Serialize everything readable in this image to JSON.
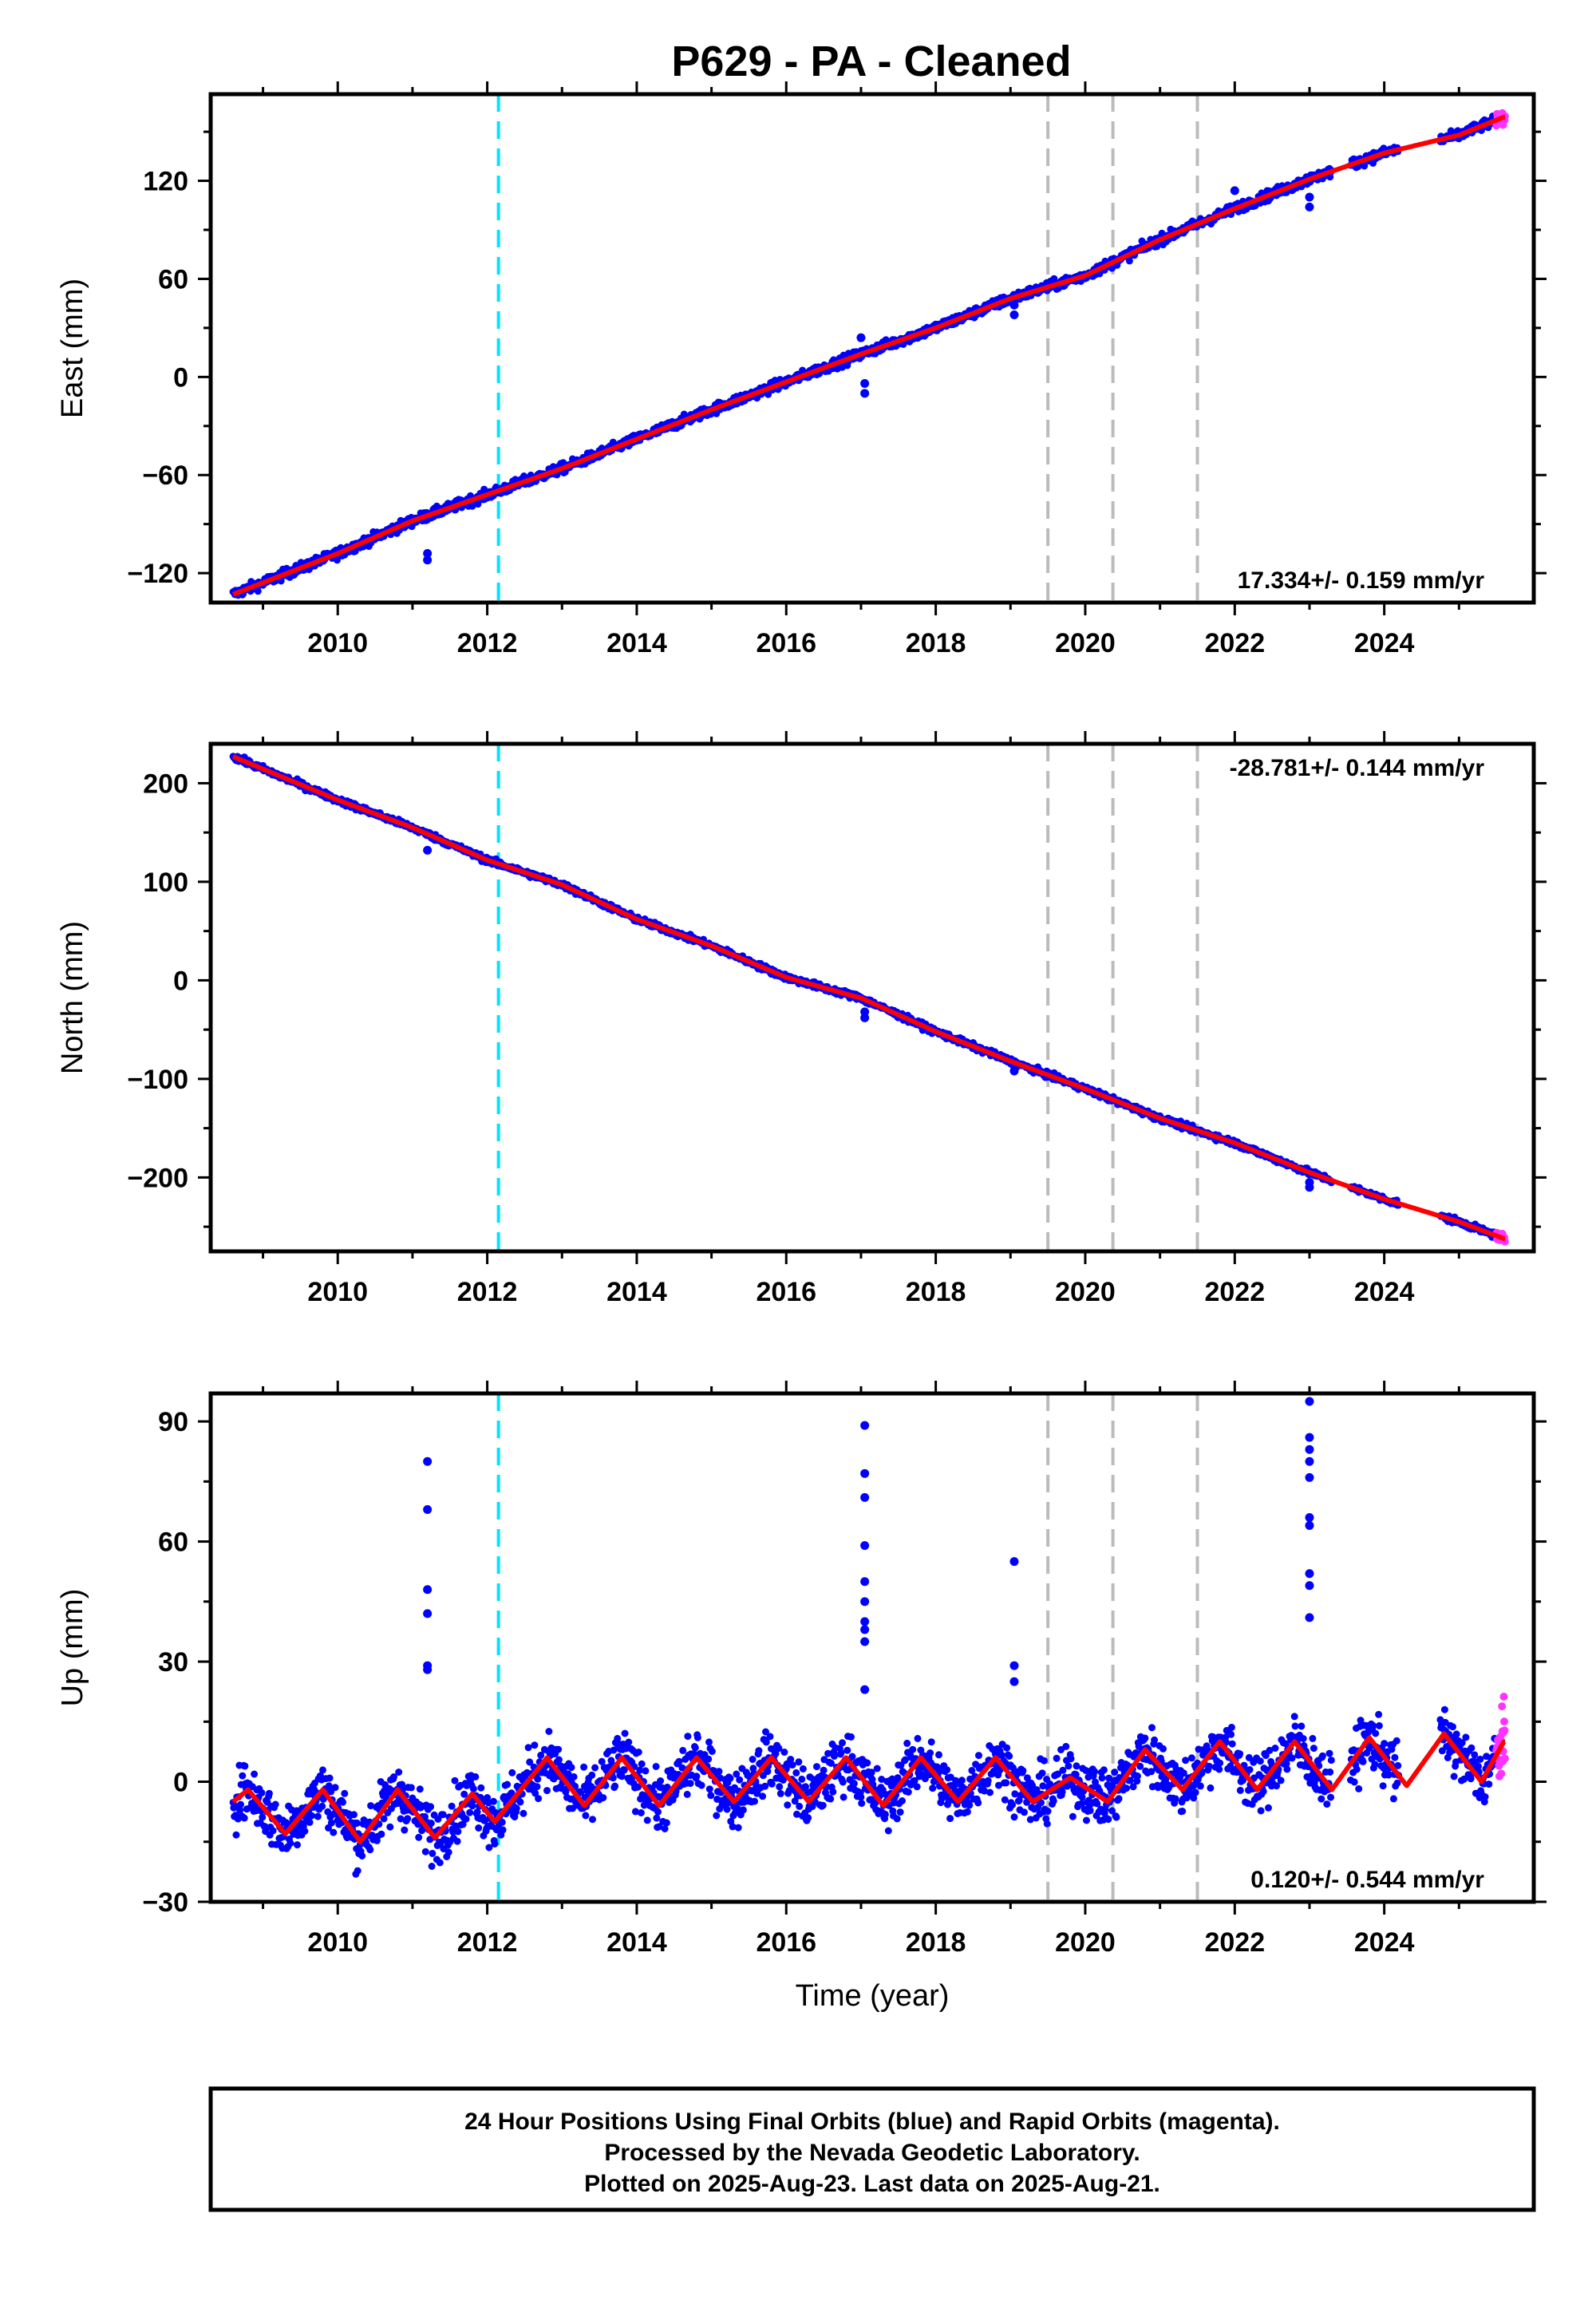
{
  "title": "P629  - PA - Cleaned",
  "colors": {
    "final_orbits": "#0000ff",
    "rapid_orbits": "#ff33ff",
    "model": "#ff0000",
    "equipment_change": "#bbbbbb",
    "antenna_change": "#00e5ff"
  },
  "chart_data": [
    {
      "type": "scatter",
      "component": "east",
      "ylabel": "East (mm)",
      "xlabel": "",
      "xlim": [
        2008.3,
        2026.0
      ],
      "ylim": [
        -138,
        173
      ],
      "xticks": [
        2010,
        2012,
        2014,
        2016,
        2018,
        2020,
        2022,
        2024
      ],
      "yticks": [
        -120,
        -60,
        0,
        60,
        120
      ],
      "ytick_labels": [
        "−120",
        "−60",
        "0",
        "60",
        "120"
      ],
      "rate_text": "17.334+/- 0.159 mm/yr",
      "rate_position": "bottom-right",
      "trend": {
        "t0": 2016.5,
        "y0": 0,
        "rate": 17.334
      },
      "model_line": [
        [
          2008.6,
          -133
        ],
        [
          2010,
          -108
        ],
        [
          2011,
          -88
        ],
        [
          2012,
          -72
        ],
        [
          2013,
          -56
        ],
        [
          2014,
          -38
        ],
        [
          2015,
          -20
        ],
        [
          2016,
          -3
        ],
        [
          2017,
          14
        ],
        [
          2018,
          30
        ],
        [
          2019,
          48
        ],
        [
          2020,
          62
        ],
        [
          2021,
          84
        ],
        [
          2022,
          103
        ],
        [
          2023,
          121
        ],
        [
          2024,
          137
        ],
        [
          2025,
          148
        ],
        [
          2025.6,
          159
        ]
      ],
      "outliers": [
        [
          2011.2,
          -108
        ],
        [
          2011.2,
          -112
        ],
        [
          2017.05,
          -4
        ],
        [
          2017.05,
          -10
        ],
        [
          2017.0,
          24
        ],
        [
          2019.05,
          38
        ],
        [
          2019.05,
          44
        ],
        [
          2022.0,
          114
        ],
        [
          2023.0,
          104
        ],
        [
          2023.0,
          110
        ]
      ],
      "vlines_cyan": [
        2012.15
      ],
      "vlines_gray": [
        2019.5,
        2020.37,
        2021.5
      ]
    },
    {
      "type": "scatter",
      "component": "north",
      "ylabel": "North (mm)",
      "xlabel": "",
      "xlim": [
        2008.3,
        2026.0
      ],
      "ylim": [
        -275,
        240
      ],
      "xticks": [
        2010,
        2012,
        2014,
        2016,
        2018,
        2020,
        2022,
        2024
      ],
      "yticks": [
        -200,
        -100,
        0,
        100,
        200
      ],
      "ytick_labels": [
        "−200",
        "−100",
        "0",
        "100",
        "200"
      ],
      "rate_text": "-28.781+/- 0.144 mm/yr",
      "rate_position": "top-right",
      "trend": {
        "t0": 2016.0,
        "y0": 0,
        "rate": -28.781
      },
      "model_line": [
        [
          2008.6,
          227
        ],
        [
          2010,
          183
        ],
        [
          2011,
          155
        ],
        [
          2012,
          122
        ],
        [
          2013,
          97
        ],
        [
          2014,
          62
        ],
        [
          2015,
          35
        ],
        [
          2016,
          3
        ],
        [
          2017,
          -18
        ],
        [
          2018,
          -52
        ],
        [
          2019,
          -82
        ],
        [
          2020,
          -110
        ],
        [
          2021,
          -140
        ],
        [
          2022,
          -165
        ],
        [
          2023,
          -195
        ],
        [
          2024,
          -222
        ],
        [
          2025,
          -245
        ],
        [
          2025.6,
          -262
        ]
      ],
      "outliers": [
        [
          2011.2,
          132
        ],
        [
          2017.05,
          -32
        ],
        [
          2017.05,
          -38
        ],
        [
          2019.05,
          -92
        ],
        [
          2023.0,
          -210
        ],
        [
          2023.0,
          -205
        ]
      ],
      "vlines_cyan": [
        2012.15
      ],
      "vlines_gray": [
        2019.5,
        2020.37,
        2021.5
      ]
    },
    {
      "type": "scatter",
      "component": "up",
      "ylabel": "Up (mm)",
      "xlabel": "Time (year)",
      "xlim": [
        2008.3,
        2026.0
      ],
      "ylim": [
        -30,
        97
      ],
      "xticks": [
        2010,
        2012,
        2014,
        2016,
        2018,
        2020,
        2022,
        2024
      ],
      "yticks": [
        -30,
        0,
        30,
        60,
        90
      ],
      "ytick_labels": [
        "−30",
        "0",
        "30",
        "60",
        "90"
      ],
      "rate_text": "0.120+/- 0.544 mm/yr",
      "rate_position": "bottom-right",
      "trend": {
        "t0": 2016.5,
        "y0": 0,
        "rate": 0.12
      },
      "model_line": [
        [
          2008.6,
          -5
        ],
        [
          2008.8,
          -2
        ],
        [
          2009.3,
          -13
        ],
        [
          2009.8,
          -2
        ],
        [
          2010.3,
          -15
        ],
        [
          2010.8,
          -2
        ],
        [
          2011.3,
          -14
        ],
        [
          2011.8,
          -3
        ],
        [
          2012.1,
          -10
        ],
        [
          2012.8,
          6
        ],
        [
          2013.3,
          -6
        ],
        [
          2013.8,
          6
        ],
        [
          2014.3,
          -6
        ],
        [
          2014.8,
          6
        ],
        [
          2015.3,
          -5
        ],
        [
          2015.8,
          6
        ],
        [
          2016.3,
          -5
        ],
        [
          2016.8,
          6
        ],
        [
          2017.3,
          -6
        ],
        [
          2017.8,
          6
        ],
        [
          2018.3,
          -5
        ],
        [
          2018.8,
          6
        ],
        [
          2019.3,
          -5
        ],
        [
          2019.8,
          1
        ],
        [
          2020.3,
          -5
        ],
        [
          2020.8,
          8
        ],
        [
          2021.3,
          -2
        ],
        [
          2021.8,
          10
        ],
        [
          2022.3,
          -2
        ],
        [
          2022.8,
          10
        ],
        [
          2023.3,
          -2
        ],
        [
          2023.8,
          11
        ],
        [
          2024.3,
          -1
        ],
        [
          2024.8,
          12
        ],
        [
          2025.3,
          0
        ],
        [
          2025.6,
          10
        ]
      ],
      "outliers": [
        [
          2011.2,
          80
        ],
        [
          2011.2,
          68
        ],
        [
          2011.2,
          48
        ],
        [
          2011.2,
          42
        ],
        [
          2011.2,
          29
        ],
        [
          2011.2,
          28
        ],
        [
          2017.05,
          89
        ],
        [
          2017.05,
          77
        ],
        [
          2017.05,
          71
        ],
        [
          2017.05,
          59
        ],
        [
          2017.05,
          50
        ],
        [
          2017.05,
          45
        ],
        [
          2017.05,
          40
        ],
        [
          2017.05,
          38
        ],
        [
          2017.05,
          35
        ],
        [
          2017.05,
          23
        ],
        [
          2019.05,
          55
        ],
        [
          2019.05,
          29
        ],
        [
          2019.05,
          25
        ],
        [
          2023.0,
          95
        ],
        [
          2023.0,
          86
        ],
        [
          2023.0,
          83
        ],
        [
          2023.0,
          80
        ],
        [
          2023.0,
          76
        ],
        [
          2023.0,
          66
        ],
        [
          2023.0,
          64
        ],
        [
          2023.0,
          52
        ],
        [
          2023.0,
          49
        ],
        [
          2023.0,
          41
        ]
      ],
      "vlines_cyan": [
        2012.15
      ],
      "vlines_gray": [
        2019.5,
        2020.37,
        2021.5
      ]
    }
  ],
  "caption": {
    "line1": "24 Hour Positions Using Final Orbits (blue) and Rapid Orbits (magenta).",
    "line2": "Processed by the Nevada Geodetic Laboratory.",
    "line3": "Plotted on 2025-Aug-23. Last data on 2025-Aug-21."
  }
}
